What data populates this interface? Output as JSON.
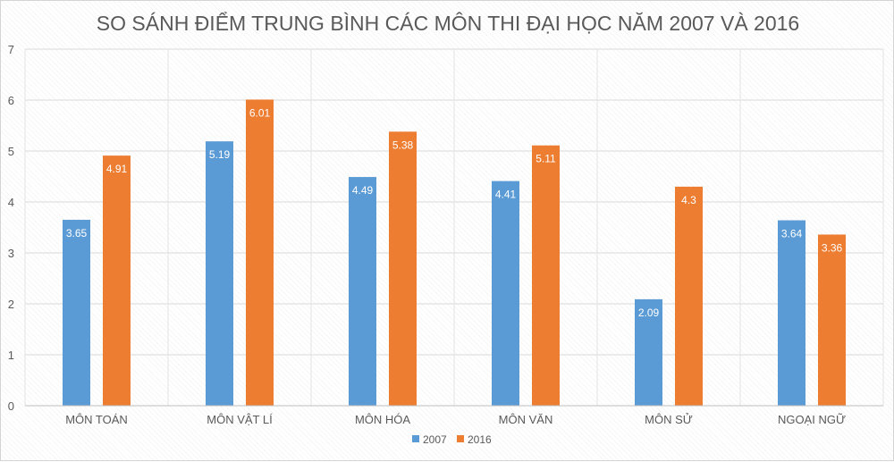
{
  "chart_data": {
    "type": "bar",
    "title": "SO SÁNH ĐIỂM TRUNG BÌNH CÁC MÔN THI ĐẠI HỌC NĂM 2007 VÀ 2016",
    "categories": [
      "MÔN TOÁN",
      "MÔN VẬT LÍ",
      "MÔN HÓA",
      "MÔN VĂN",
      "MÔN SỬ",
      "NGOẠI NGỮ"
    ],
    "series": [
      {
        "name": "2007",
        "color": "#5b9bd5",
        "values": [
          3.65,
          5.19,
          4.49,
          4.41,
          2.09,
          3.64
        ]
      },
      {
        "name": "2016",
        "color": "#ed7d31",
        "values": [
          4.91,
          6.01,
          5.38,
          5.11,
          4.3,
          3.36
        ]
      }
    ],
    "ylim": [
      0,
      7
    ],
    "yticks": [
      "0",
      "1",
      "2",
      "3",
      "4",
      "5",
      "6",
      "7"
    ],
    "xlabel": "",
    "ylabel": "",
    "grid": true,
    "legend": "bottom"
  }
}
